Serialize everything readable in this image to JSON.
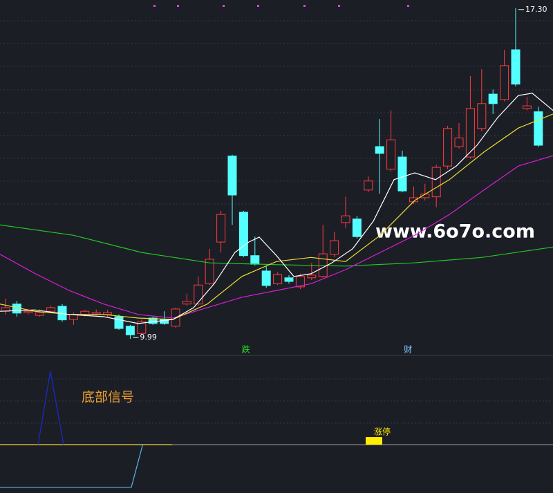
{
  "chart_data": [
    {
      "type": "candlestick",
      "up_color": "#ff3c3c",
      "down_color": "#54ffff",
      "ylim": [
        9.64,
        17.48
      ],
      "open": [
        10.6,
        10.76,
        10.57,
        10.51,
        10.6,
        10.71,
        10.42,
        10.53,
        10.54,
        10.53,
        10.48,
        10.27,
        10.11,
        10.45,
        10.42,
        10.27,
        10.76,
        10.76,
        11.21,
        12.13,
        14.03,
        12.79,
        11.83,
        11.49,
        11.21,
        11.34,
        11.14,
        11.34,
        11.37,
        11.86,
        12.56,
        12.64,
        13.28,
        14.24,
        13.74,
        14.01,
        13.02,
        13.11,
        13.13,
        13.81,
        14.24,
        14.01,
        14.64,
        15.4,
        15.28,
        16.38,
        15.08,
        15.01
      ],
      "high": [
        10.88,
        10.83,
        10.65,
        10.64,
        10.72,
        10.76,
        10.57,
        10.63,
        10.64,
        10.63,
        10.53,
        10.3,
        10.42,
        10.48,
        10.6,
        10.68,
        10.99,
        11.37,
        11.98,
        12.82,
        14.06,
        12.82,
        12.25,
        11.6,
        11.46,
        11.4,
        11.43,
        11.67,
        12.51,
        12.36,
        13.13,
        12.71,
        13.58,
        14.85,
        15.04,
        14.15,
        13.36,
        13.42,
        13.84,
        14.7,
        14.76,
        15.8,
        15.95,
        15.5,
        16.38,
        17.3,
        15.34,
        15.12
      ],
      "low": [
        10.53,
        10.48,
        10.53,
        10.48,
        10.57,
        10.37,
        10.3,
        10.48,
        10.51,
        10.48,
        10.19,
        9.99,
        10.08,
        10.3,
        10.3,
        10.24,
        10.72,
        10.72,
        11.18,
        11.9,
        12.51,
        11.8,
        11.61,
        11.12,
        11.18,
        11.21,
        11.09,
        11.29,
        11.34,
        11.8,
        12.44,
        12.21,
        13.23,
        13.2,
        13.69,
        13.23,
        12.97,
        13.05,
        12.9,
        13.74,
        14.2,
        13.97,
        14.58,
        14.96,
        15.24,
        15.57,
        15.04,
        14.23
      ],
      "close": [
        10.68,
        10.56,
        10.6,
        10.57,
        10.68,
        10.41,
        10.53,
        10.6,
        10.57,
        10.57,
        10.22,
        10.08,
        10.37,
        10.33,
        10.33,
        10.65,
        10.82,
        11.18,
        11.75,
        12.74,
        13.17,
        11.83,
        11.64,
        11.17,
        11.41,
        11.26,
        11.37,
        11.4,
        11.87,
        12.16,
        12.71,
        12.25,
        13.48,
        14.09,
        14.39,
        13.26,
        13.11,
        13.19,
        13.78,
        14.64,
        14.43,
        15.08,
        15.19,
        15.19,
        16.03,
        15.62,
        15.14,
        14.27
      ],
      "series": [
        {
          "color": "#22c822",
          "x": [
            -0.5,
            6,
            12,
            18,
            24,
            30,
            36,
            42,
            48.3
          ],
          "values": [
            12.51,
            12.28,
            11.9,
            11.67,
            11.63,
            11.6,
            11.67,
            11.79,
            12.02
          ]
        },
        {
          "color": "#d81ed8",
          "x": [
            -0.49,
            2.56,
            5.61,
            8.66,
            11.71,
            14.76,
            17.8,
            20.85,
            23.9,
            26.95,
            30,
            33.05,
            36.1,
            39.15,
            42.2,
            45.24,
            48.29
          ],
          "values": [
            11.86,
            11.44,
            11.06,
            10.76,
            10.53,
            10.45,
            10.68,
            10.91,
            11.06,
            11.21,
            11.52,
            11.9,
            12.28,
            12.74,
            13.28,
            13.81,
            14.04
          ]
        },
        {
          "color": "#e8e030",
          "x": [
            -0.49,
            2.56,
            5.61,
            8.66,
            11.71,
            14.76,
            17.8,
            20.85,
            23.9,
            26.95,
            30,
            33.05,
            36.1,
            39.15,
            42.2,
            45.24,
            48.29
          ],
          "values": [
            10.76,
            10.6,
            10.53,
            10.53,
            10.45,
            10.42,
            10.76,
            11.37,
            11.7,
            11.79,
            11.7,
            12.28,
            13.05,
            13.51,
            14.12,
            14.65,
            14.96
          ]
        },
        {
          "color": "#ffffff",
          "x": [
            -0.49,
            2.56,
            5.61,
            8.66,
            11.71,
            14.76,
            16.59,
            18.41,
            20.24,
            21.46,
            22.38,
            23.9,
            25.43,
            26.95,
            28.78,
            30.61,
            32.44,
            34.27,
            36.1,
            37.93,
            39.76,
            41.59,
            43.41,
            45.24,
            46.46,
            48.29
          ],
          "values": [
            10.6,
            10.63,
            10.53,
            10.48,
            10.33,
            10.42,
            10.68,
            11.21,
            11.9,
            12.13,
            12.24,
            11.83,
            11.37,
            11.43,
            11.67,
            11.98,
            12.59,
            13.51,
            13.66,
            13.51,
            13.81,
            14.27,
            14.88,
            15.37,
            15.42,
            15.04
          ]
        }
      ],
      "annotations": [
        {
          "x": 45,
          "value": 17.3,
          "label": "17.30"
        },
        {
          "x": 11,
          "value": 9.99,
          "label": "9.99"
        }
      ],
      "markers": [
        {
          "x": 21.2,
          "label": "跌",
          "color": "#22dd22"
        },
        {
          "x": 35.5,
          "label": "财",
          "color": "#7fd0ff"
        }
      ],
      "watermark": "www.6o7o.com"
    },
    {
      "type": "indicator",
      "ylim": [
        -63,
        116
      ],
      "series": [
        {
          "style": "line",
          "color": "#ffe040",
          "x": [
            -0.5,
            14.7
          ],
          "values": [
            0,
            0
          ]
        },
        {
          "style": "line",
          "color": "#8a8a8a",
          "x": [
            14.7,
            48.3
          ],
          "values": [
            0,
            0
          ]
        },
        {
          "style": "line",
          "color": "#1a2ad0",
          "x": [
            2.87,
            3.96,
            5.12
          ],
          "values": [
            0,
            100,
            0
          ]
        },
        {
          "style": "line",
          "color": "#5ab8f0",
          "x": [
            -0.5,
            11.1,
            12.1
          ],
          "values": [
            -58,
            -58,
            0
          ]
        },
        {
          "style": "bar",
          "color": "#ffee00",
          "x": [
            32.5
          ],
          "values": [
            10.4
          ]
        }
      ],
      "annotations": [
        {
          "x": 32.5,
          "label": "涨停",
          "color": "#ffee00"
        }
      ],
      "signal_text": "底部信号"
    }
  ]
}
